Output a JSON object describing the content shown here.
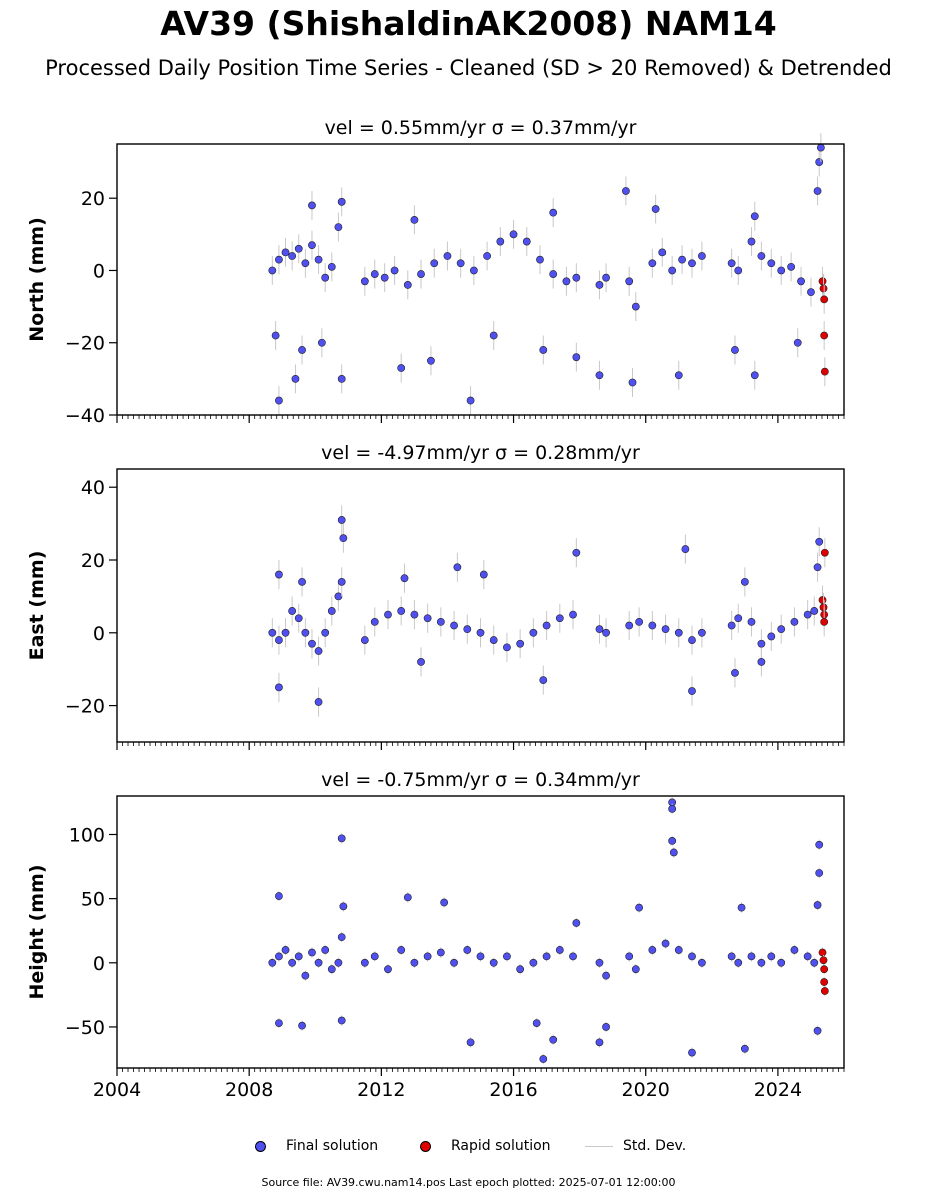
{
  "title": "AV39 (ShishaldinAK2008) NAM14",
  "subtitle": "Processed Daily Position Time Series - Cleaned (SD > 20 Removed) & Detrended",
  "source": "Source file: AV39.cwu.nam14.pos  Last epoch plotted: 2025-07-01 12:00:00",
  "legend": {
    "final": "Final solution",
    "rapid": "Rapid solution",
    "std": "Std. Dev."
  },
  "colors": {
    "final": "#5050f0",
    "rapid": "#e00000",
    "std": "#c8c8c8"
  },
  "chart_data": [
    {
      "type": "scatter",
      "title": "vel = 0.55mm/yr   σ = 0.37mm/yr",
      "ylabel": "North (mm)",
      "xlim": [
        2004,
        2026
      ],
      "ylim": [
        -40,
        35
      ],
      "yticks": [
        -40,
        -20,
        0,
        20
      ],
      "xticks": [
        2004,
        2008,
        2012,
        2016,
        2020,
        2024
      ],
      "series": [
        {
          "name": "Final solution",
          "points": [
            [
              2008.7,
              0
            ],
            [
              2008.9,
              3
            ],
            [
              2009.1,
              5
            ],
            [
              2009.3,
              4
            ],
            [
              2009.5,
              6
            ],
            [
              2009.7,
              2
            ],
            [
              2009.9,
              7
            ],
            [
              2010.1,
              3
            ],
            [
              2010.3,
              -2
            ],
            [
              2010.5,
              1
            ],
            [
              2010.7,
              12
            ],
            [
              2010.8,
              19
            ],
            [
              2008.8,
              -18
            ],
            [
              2008.9,
              -36
            ],
            [
              2009.4,
              -30
            ],
            [
              2009.6,
              -22
            ],
            [
              2009.9,
              18
            ],
            [
              2010.2,
              -20
            ],
            [
              2010.8,
              -30
            ],
            [
              2011.5,
              -3
            ],
            [
              2011.8,
              -1
            ],
            [
              2012.1,
              -2
            ],
            [
              2012.4,
              0
            ],
            [
              2012.8,
              -4
            ],
            [
              2013.2,
              -1
            ],
            [
              2013.6,
              2
            ],
            [
              2014.0,
              4
            ],
            [
              2014.4,
              2
            ],
            [
              2014.8,
              0
            ],
            [
              2015.2,
              4
            ],
            [
              2015.6,
              8
            ],
            [
              2016.0,
              10
            ],
            [
              2016.4,
              8
            ],
            [
              2016.8,
              3
            ],
            [
              2017.2,
              -1
            ],
            [
              2017.6,
              -3
            ],
            [
              2017.9,
              -2
            ],
            [
              2012.6,
              -27
            ],
            [
              2013.5,
              -25
            ],
            [
              2014.7,
              -36
            ],
            [
              2015.4,
              -18
            ],
            [
              2016.9,
              -22
            ],
            [
              2017.9,
              -24
            ],
            [
              2017.2,
              16
            ],
            [
              2013.0,
              14
            ],
            [
              2018.6,
              -4
            ],
            [
              2018.8,
              -2
            ],
            [
              2018.6,
              -29
            ],
            [
              2019.5,
              -3
            ],
            [
              2019.7,
              -10
            ],
            [
              2019.4,
              22
            ],
            [
              2019.6,
              -31
            ],
            [
              2020.2,
              2
            ],
            [
              2020.5,
              5
            ],
            [
              2020.8,
              0
            ],
            [
              2021.1,
              3
            ],
            [
              2021.4,
              2
            ],
            [
              2021.7,
              4
            ],
            [
              2020.3,
              17
            ],
            [
              2021.0,
              -29
            ],
            [
              2022.6,
              2
            ],
            [
              2022.8,
              0
            ],
            [
              2022.7,
              -22
            ],
            [
              2023.2,
              8
            ],
            [
              2023.5,
              4
            ],
            [
              2023.8,
              2
            ],
            [
              2024.1,
              0
            ],
            [
              2024.4,
              1
            ],
            [
              2024.7,
              -3
            ],
            [
              2025.0,
              -6
            ],
            [
              2023.3,
              15
            ],
            [
              2023.3,
              -29
            ],
            [
              2024.6,
              -20
            ],
            [
              2025.2,
              22
            ],
            [
              2025.25,
              30
            ],
            [
              2025.3,
              34
            ]
          ]
        },
        {
          "name": "Rapid solution",
          "points": [
            [
              2025.35,
              -3
            ],
            [
              2025.38,
              -5
            ],
            [
              2025.4,
              -8
            ],
            [
              2025.4,
              -18
            ],
            [
              2025.42,
              -28
            ]
          ]
        }
      ]
    },
    {
      "type": "scatter",
      "title": "vel = -4.97mm/yr   σ = 0.28mm/yr",
      "ylabel": "East (mm)",
      "xlim": [
        2004,
        2026
      ],
      "ylim": [
        -30,
        45
      ],
      "yticks": [
        -20,
        0,
        20,
        40
      ],
      "xticks": [
        2004,
        2008,
        2012,
        2016,
        2020,
        2024
      ],
      "series": [
        {
          "name": "Final solution",
          "points": [
            [
              2008.7,
              0
            ],
            [
              2008.9,
              -2
            ],
            [
              2009.1,
              0
            ],
            [
              2009.3,
              6
            ],
            [
              2009.5,
              4
            ],
            [
              2009.7,
              0
            ],
            [
              2009.9,
              -3
            ],
            [
              2010.1,
              -5
            ],
            [
              2010.3,
              0
            ],
            [
              2010.5,
              6
            ],
            [
              2010.7,
              10
            ],
            [
              2010.8,
              14
            ],
            [
              2010.8,
              31
            ],
            [
              2010.85,
              26
            ],
            [
              2008.9,
              16
            ],
            [
              2008.9,
              -15
            ],
            [
              2010.1,
              -19
            ],
            [
              2009.6,
              14
            ],
            [
              2011.5,
              -2
            ],
            [
              2011.8,
              3
            ],
            [
              2012.2,
              5
            ],
            [
              2012.6,
              6
            ],
            [
              2013.0,
              5
            ],
            [
              2013.4,
              4
            ],
            [
              2013.8,
              3
            ],
            [
              2014.2,
              2
            ],
            [
              2014.6,
              1
            ],
            [
              2015.0,
              0
            ],
            [
              2015.4,
              -2
            ],
            [
              2015.8,
              -4
            ],
            [
              2016.2,
              -3
            ],
            [
              2016.6,
              0
            ],
            [
              2017.0,
              2
            ],
            [
              2017.4,
              4
            ],
            [
              2017.8,
              5
            ],
            [
              2012.7,
              15
            ],
            [
              2014.3,
              18
            ],
            [
              2015.1,
              16
            ],
            [
              2016.9,
              -13
            ],
            [
              2017.9,
              22
            ],
            [
              2013.2,
              -8
            ],
            [
              2018.6,
              1
            ],
            [
              2018.8,
              0
            ],
            [
              2019.5,
              2
            ],
            [
              2019.8,
              3
            ],
            [
              2020.2,
              2
            ],
            [
              2020.6,
              1
            ],
            [
              2021.0,
              0
            ],
            [
              2021.4,
              -2
            ],
            [
              2021.7,
              0
            ],
            [
              2021.2,
              23
            ],
            [
              2021.4,
              -16
            ],
            [
              2022.6,
              2
            ],
            [
              2022.8,
              4
            ],
            [
              2023.2,
              3
            ],
            [
              2023.5,
              -3
            ],
            [
              2023.8,
              -1
            ],
            [
              2024.1,
              1
            ],
            [
              2024.5,
              3
            ],
            [
              2024.9,
              5
            ],
            [
              2025.1,
              6
            ],
            [
              2023.0,
              14
            ],
            [
              2022.7,
              -11
            ],
            [
              2023.5,
              -8
            ],
            [
              2025.2,
              18
            ],
            [
              2025.25,
              25
            ]
          ]
        },
        {
          "name": "Rapid solution",
          "points": [
            [
              2025.35,
              9
            ],
            [
              2025.38,
              7
            ],
            [
              2025.4,
              5
            ],
            [
              2025.4,
              3
            ],
            [
              2025.42,
              22
            ]
          ]
        }
      ]
    },
    {
      "type": "scatter",
      "title": "vel = -0.75mm/yr   σ = 0.34mm/yr",
      "ylabel": "Height (mm)",
      "xlim": [
        2004,
        2026
      ],
      "ylim": [
        -82,
        130
      ],
      "yticks": [
        -50,
        0,
        50,
        100
      ],
      "xticks": [
        2004,
        2008,
        2012,
        2016,
        2020,
        2024
      ],
      "series": [
        {
          "name": "Final solution",
          "points": [
            [
              2008.7,
              0
            ],
            [
              2008.9,
              5
            ],
            [
              2009.1,
              10
            ],
            [
              2009.3,
              0
            ],
            [
              2009.5,
              5
            ],
            [
              2009.7,
              -10
            ],
            [
              2009.9,
              8
            ],
            [
              2010.1,
              0
            ],
            [
              2010.3,
              10
            ],
            [
              2010.5,
              -5
            ],
            [
              2010.7,
              0
            ],
            [
              2010.8,
              20
            ],
            [
              2010.8,
              97
            ],
            [
              2008.9,
              52
            ],
            [
              2008.9,
              -47
            ],
            [
              2009.6,
              -49
            ],
            [
              2010.8,
              -45
            ],
            [
              2010.85,
              44
            ],
            [
              2011.5,
              0
            ],
            [
              2011.8,
              5
            ],
            [
              2012.2,
              -5
            ],
            [
              2012.6,
              10
            ],
            [
              2013.0,
              0
            ],
            [
              2013.4,
              5
            ],
            [
              2013.8,
              8
            ],
            [
              2014.2,
              0
            ],
            [
              2014.6,
              10
            ],
            [
              2015.0,
              5
            ],
            [
              2015.4,
              0
            ],
            [
              2015.8,
              5
            ],
            [
              2016.2,
              -5
            ],
            [
              2016.6,
              0
            ],
            [
              2017.0,
              5
            ],
            [
              2017.4,
              10
            ],
            [
              2017.8,
              5
            ],
            [
              2012.8,
              51
            ],
            [
              2013.9,
              47
            ],
            [
              2014.7,
              -62
            ],
            [
              2016.7,
              -47
            ],
            [
              2016.9,
              -75
            ],
            [
              2017.2,
              -60
            ],
            [
              2017.9,
              31
            ],
            [
              2018.6,
              0
            ],
            [
              2018.8,
              -10
            ],
            [
              2018.6,
              -62
            ],
            [
              2018.8,
              -50
            ],
            [
              2019.5,
              5
            ],
            [
              2019.7,
              -5
            ],
            [
              2019.8,
              43
            ],
            [
              2020.2,
              10
            ],
            [
              2020.6,
              15
            ],
            [
              2020.8,
              125
            ],
            [
              2020.8,
              120
            ],
            [
              2020.8,
              95
            ],
            [
              2020.85,
              86
            ],
            [
              2021.0,
              10
            ],
            [
              2021.4,
              5
            ],
            [
              2021.7,
              0
            ],
            [
              2021.4,
              -70
            ],
            [
              2022.6,
              5
            ],
            [
              2022.8,
              0
            ],
            [
              2022.9,
              43
            ],
            [
              2023.0,
              -67
            ],
            [
              2023.2,
              5
            ],
            [
              2023.5,
              0
            ],
            [
              2023.8,
              5
            ],
            [
              2024.1,
              0
            ],
            [
              2024.5,
              10
            ],
            [
              2024.9,
              5
            ],
            [
              2025.1,
              0
            ],
            [
              2025.2,
              45
            ],
            [
              2025.25,
              70
            ],
            [
              2025.25,
              92
            ],
            [
              2025.2,
              -53
            ]
          ]
        },
        {
          "name": "Rapid solution",
          "points": [
            [
              2025.35,
              8
            ],
            [
              2025.38,
              2
            ],
            [
              2025.4,
              -5
            ],
            [
              2025.4,
              -15
            ],
            [
              2025.42,
              -22
            ]
          ]
        }
      ]
    }
  ]
}
